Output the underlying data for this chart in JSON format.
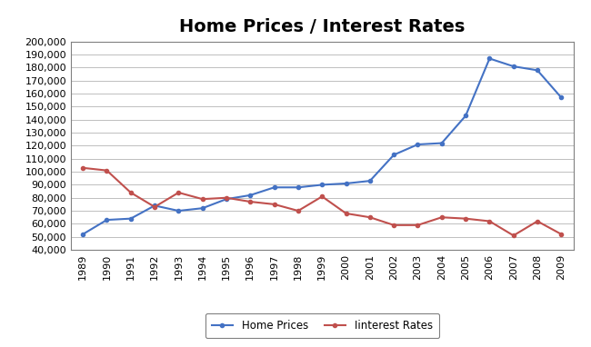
{
  "title": "Home Prices / Interest Rates",
  "years": [
    1989,
    1990,
    1991,
    1992,
    1993,
    1994,
    1995,
    1996,
    1997,
    1998,
    1999,
    2000,
    2001,
    2002,
    2003,
    2004,
    2005,
    2006,
    2007,
    2008,
    2009
  ],
  "home_prices": [
    52000,
    63000,
    64000,
    74000,
    70000,
    72000,
    79000,
    82000,
    88000,
    88000,
    90000,
    91000,
    93000,
    113000,
    121000,
    122000,
    143000,
    187000,
    181000,
    178000,
    157000
  ],
  "interest_rates": [
    103000,
    101000,
    84000,
    73000,
    84000,
    79000,
    80000,
    77000,
    75000,
    70000,
    81000,
    68000,
    65000,
    59000,
    59000,
    65000,
    64000,
    62000,
    51000,
    62000,
    52000
  ],
  "home_prices_color": "#4472C4",
  "interest_rates_color": "#C0504D",
  "legend_labels": [
    "Home Prices",
    "Iinterest Rates"
  ],
  "ylim_min": 40000,
  "ylim_max": 200000,
  "ytick_step": 10000,
  "background_color": "#FFFFFF",
  "grid_color": "#BFBFBF",
  "title_fontsize": 14,
  "tick_fontsize": 8,
  "marker": "o",
  "marker_size": 3,
  "line_width": 1.5,
  "legend_fontsize": 8.5
}
